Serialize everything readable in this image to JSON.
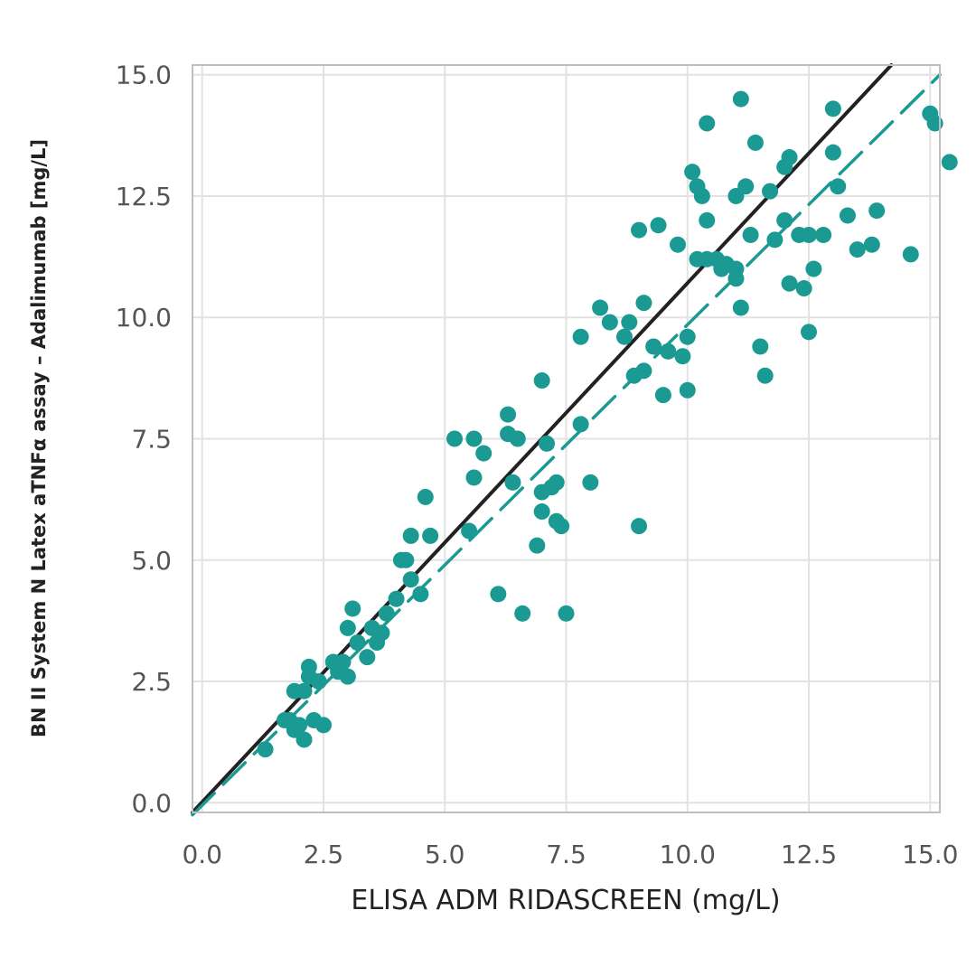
{
  "chart_data": {
    "type": "scatter",
    "title": "",
    "xlabel": "ELISA ADM RIDASCREEN (mg/L)",
    "ylabel": "BN II System N Latex aTNFα assay – Adalimumab [mg/L]",
    "xlim": [
      -0.2,
      15.2
    ],
    "ylim": [
      -0.2,
      15.2
    ],
    "x_ticks": [
      "0.0",
      "2.5",
      "5.0",
      "7.5",
      "10.0",
      "12.5",
      "15.0"
    ],
    "y_ticks": [
      "0.0",
      "2.5",
      "5.0",
      "7.5",
      "10.0",
      "12.5",
      "15.0"
    ],
    "grid": true,
    "colors": {
      "points": "#1a9a93",
      "identity_line": "#222222",
      "regression_line": "#1a9a93",
      "grid": "#e2e2e2",
      "frame": "#bfbfbf"
    },
    "lines": [
      {
        "kind": "identity",
        "style": "solid",
        "x": [
          -0.2,
          14.2
        ],
        "y": [
          -0.2,
          15.2
        ]
      },
      {
        "kind": "regression",
        "style": "dashed",
        "x": [
          -0.2,
          15.2
        ],
        "y": [
          -0.25,
          15.0
        ]
      }
    ],
    "points": [
      [
        1.3,
        1.1
      ],
      [
        1.7,
        1.7
      ],
      [
        1.8,
        1.7
      ],
      [
        1.9,
        1.5
      ],
      [
        1.9,
        2.3
      ],
      [
        2.0,
        1.6
      ],
      [
        2.1,
        2.3
      ],
      [
        2.1,
        1.3
      ],
      [
        2.2,
        2.6
      ],
      [
        2.2,
        2.8
      ],
      [
        2.3,
        1.7
      ],
      [
        2.4,
        2.5
      ],
      [
        2.5,
        1.6
      ],
      [
        2.7,
        2.9
      ],
      [
        2.8,
        2.7
      ],
      [
        2.9,
        2.9
      ],
      [
        3.0,
        2.6
      ],
      [
        3.0,
        3.6
      ],
      [
        3.1,
        4.0
      ],
      [
        3.2,
        3.3
      ],
      [
        3.4,
        3.0
      ],
      [
        3.5,
        3.6
      ],
      [
        3.6,
        3.3
      ],
      [
        3.7,
        3.5
      ],
      [
        3.8,
        3.9
      ],
      [
        4.0,
        4.2
      ],
      [
        4.1,
        5.0
      ],
      [
        4.2,
        5.0
      ],
      [
        4.3,
        5.5
      ],
      [
        4.3,
        4.6
      ],
      [
        4.5,
        4.3
      ],
      [
        4.6,
        6.3
      ],
      [
        4.7,
        5.5
      ],
      [
        5.2,
        7.5
      ],
      [
        5.5,
        5.6
      ],
      [
        5.6,
        7.5
      ],
      [
        5.6,
        6.7
      ],
      [
        5.8,
        7.2
      ],
      [
        6.1,
        4.3
      ],
      [
        6.3,
        7.6
      ],
      [
        6.3,
        8.0
      ],
      [
        6.4,
        6.6
      ],
      [
        6.5,
        7.5
      ],
      [
        6.6,
        3.9
      ],
      [
        6.9,
        5.3
      ],
      [
        7.0,
        8.7
      ],
      [
        7.0,
        6.0
      ],
      [
        7.0,
        6.4
      ],
      [
        7.1,
        7.4
      ],
      [
        7.2,
        6.5
      ],
      [
        7.3,
        5.8
      ],
      [
        7.3,
        6.6
      ],
      [
        7.4,
        5.7
      ],
      [
        7.5,
        3.9
      ],
      [
        7.8,
        7.8
      ],
      [
        7.8,
        9.6
      ],
      [
        8.0,
        6.6
      ],
      [
        8.2,
        10.2
      ],
      [
        8.4,
        9.9
      ],
      [
        8.7,
        9.6
      ],
      [
        8.8,
        9.9
      ],
      [
        8.9,
        8.8
      ],
      [
        9.0,
        11.8
      ],
      [
        9.0,
        5.7
      ],
      [
        9.1,
        8.9
      ],
      [
        9.1,
        10.3
      ],
      [
        9.3,
        9.4
      ],
      [
        9.4,
        11.9
      ],
      [
        9.5,
        8.4
      ],
      [
        9.6,
        9.3
      ],
      [
        9.8,
        11.5
      ],
      [
        9.9,
        9.2
      ],
      [
        10.0,
        8.5
      ],
      [
        10.0,
        9.6
      ],
      [
        10.1,
        13.0
      ],
      [
        10.2,
        12.7
      ],
      [
        10.2,
        11.2
      ],
      [
        10.3,
        12.5
      ],
      [
        10.4,
        14.0
      ],
      [
        10.4,
        11.2
      ],
      [
        10.4,
        12.0
      ],
      [
        10.6,
        11.2
      ],
      [
        10.7,
        11.0
      ],
      [
        10.8,
        11.1
      ],
      [
        11.0,
        12.5
      ],
      [
        11.0,
        11.0
      ],
      [
        11.0,
        10.8
      ],
      [
        11.1,
        14.5
      ],
      [
        11.1,
        10.2
      ],
      [
        11.2,
        12.7
      ],
      [
        11.3,
        11.7
      ],
      [
        11.4,
        13.6
      ],
      [
        11.5,
        9.4
      ],
      [
        11.6,
        8.8
      ],
      [
        11.7,
        12.6
      ],
      [
        11.8,
        11.6
      ],
      [
        12.0,
        12.0
      ],
      [
        12.0,
        13.1
      ],
      [
        12.1,
        13.3
      ],
      [
        12.1,
        10.7
      ],
      [
        12.3,
        11.7
      ],
      [
        12.4,
        10.6
      ],
      [
        12.5,
        9.7
      ],
      [
        12.5,
        11.7
      ],
      [
        12.6,
        11.0
      ],
      [
        12.8,
        11.7
      ],
      [
        13.0,
        13.4
      ],
      [
        13.0,
        14.3
      ],
      [
        13.1,
        12.7
      ],
      [
        13.3,
        12.1
      ],
      [
        13.5,
        11.4
      ],
      [
        13.8,
        11.5
      ],
      [
        13.9,
        12.2
      ],
      [
        14.6,
        11.3
      ],
      [
        15.0,
        14.2
      ],
      [
        15.1,
        14.0
      ],
      [
        15.4,
        13.2
      ]
    ]
  }
}
